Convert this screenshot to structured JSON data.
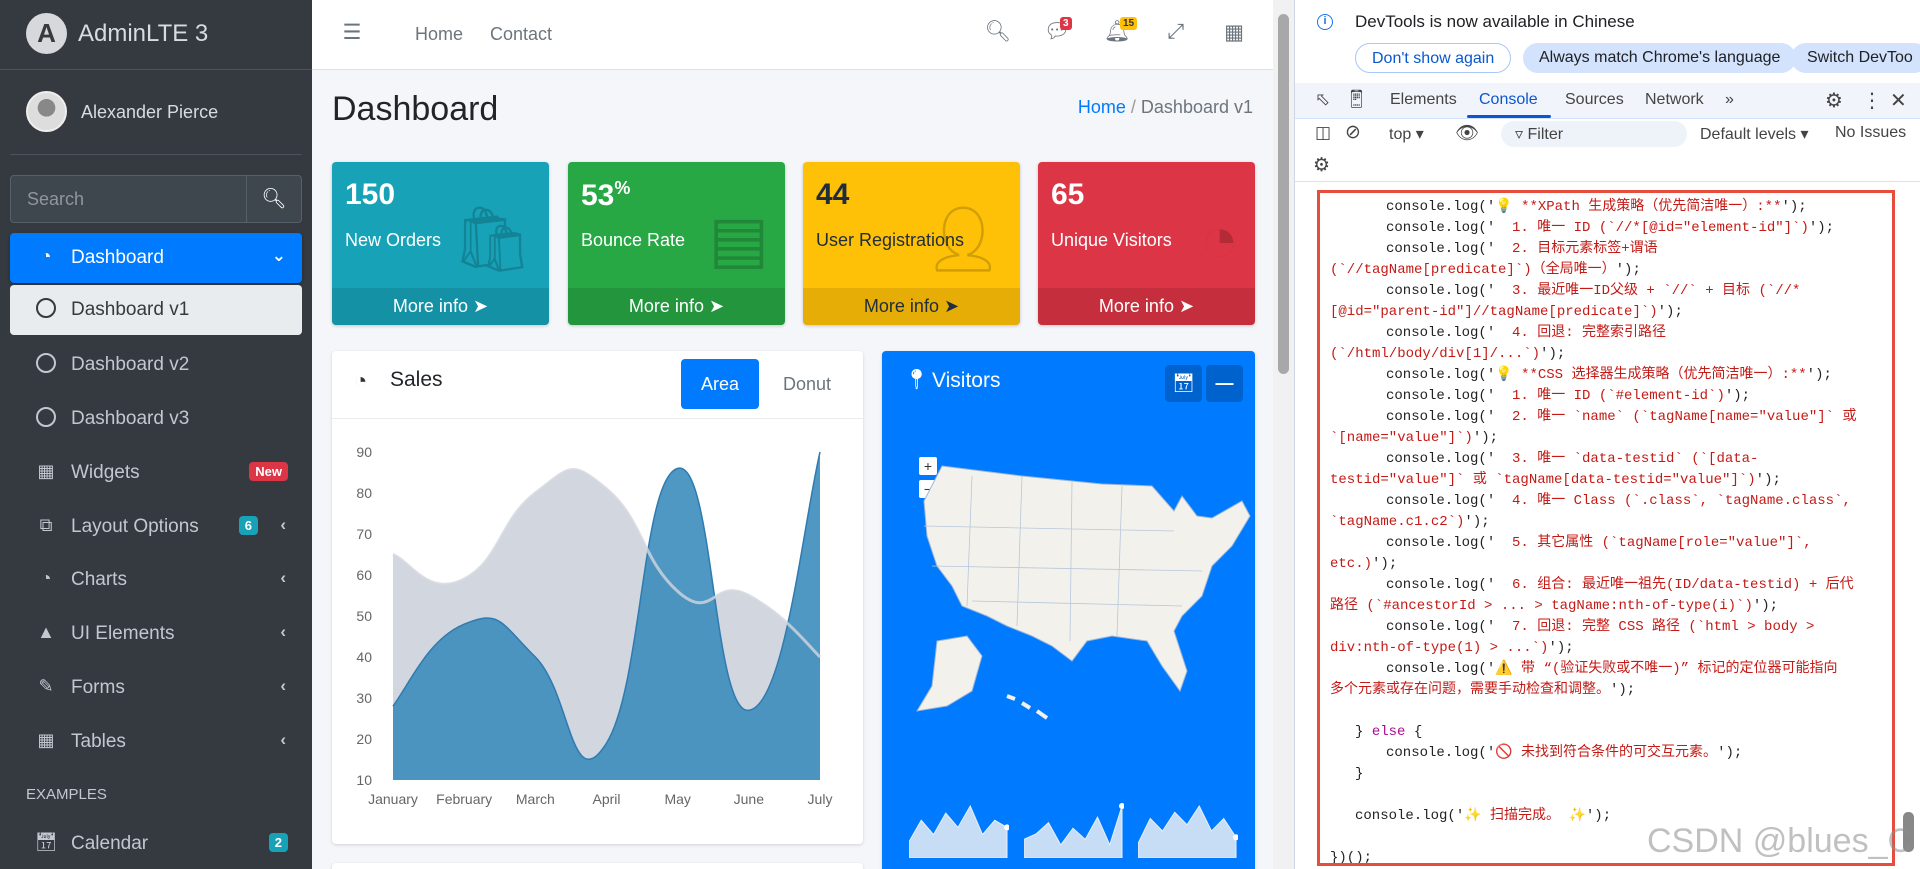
{
  "sidebar": {
    "brand": "AdminLTE 3",
    "brand_logo_letter": "A",
    "user_name": "Alexander Pierce",
    "search_placeholder": "Search",
    "items": [
      {
        "label": "Dashboard",
        "icon": "tachometer-icon",
        "state": "active",
        "right": "chevron-down"
      },
      {
        "label": "Dashboard v1",
        "icon": "circle-icon",
        "state": "selected"
      },
      {
        "label": "Dashboard v2",
        "icon": "circle-icon"
      },
      {
        "label": "Dashboard v3",
        "icon": "circle-icon"
      },
      {
        "label": "Widgets",
        "icon": "th-icon",
        "badge": "New",
        "badge_color": "#dc3545"
      },
      {
        "label": "Layout Options",
        "icon": "copy-icon",
        "badge": "6",
        "badge_color": "#17a2b8",
        "right": "chevron-left"
      },
      {
        "label": "Charts",
        "icon": "pie-chart-icon",
        "right": "chevron-left"
      },
      {
        "label": "UI Elements",
        "icon": "tree-icon",
        "right": "chevron-left"
      },
      {
        "label": "Forms",
        "icon": "edit-icon",
        "right": "chevron-left"
      },
      {
        "label": "Tables",
        "icon": "table-icon",
        "right": "chevron-left"
      }
    ],
    "header": "EXAMPLES",
    "calendar": {
      "label": "Calendar",
      "icon": "calendar-icon",
      "badge": "2",
      "badge_color": "#17a2b8"
    }
  },
  "navbar": {
    "links": [
      "Home",
      "Contact"
    ],
    "messages_badge": "3",
    "notifications_badge": "15"
  },
  "page": {
    "title": "Dashboard",
    "breadcrumb": [
      "Home",
      "Dashboard v1"
    ]
  },
  "small_boxes": [
    {
      "value": "150",
      "suffix": "",
      "label": "New Orders",
      "color": "#17a2b8",
      "icon": "shopping-bag-icon",
      "more": "More info"
    },
    {
      "value": "53",
      "suffix": "%",
      "label": "Bounce Rate",
      "color": "#28a745",
      "icon": "bar-chart-icon",
      "more": "More info"
    },
    {
      "value": "44",
      "suffix": "",
      "label": "User Registrations",
      "color": "#ffc107",
      "icon": "user-plus-icon",
      "more": "More info"
    },
    {
      "value": "65",
      "suffix": "",
      "label": "Unique Visitors",
      "color": "#dc3545",
      "icon": "pie-chart-icon",
      "more": "More info"
    }
  ],
  "sales": {
    "title": "Sales",
    "tabs": [
      "Area",
      "Donut"
    ],
    "active_tab": "Area"
  },
  "chart_data": {
    "type": "area",
    "categories": [
      "January",
      "February",
      "March",
      "April",
      "May",
      "June",
      "July"
    ],
    "yticks": [
      10,
      20,
      30,
      40,
      50,
      60,
      70,
      80,
      90
    ],
    "ylim": [
      10,
      90
    ],
    "series": [
      {
        "name": "gray",
        "color": "#d2d6de",
        "values": [
          65,
          59,
          80,
          81,
          56,
          55,
          40
        ]
      },
      {
        "name": "blue",
        "color": "#3c8dbc",
        "values": [
          28,
          48,
          40,
          19,
          86,
          27,
          90
        ]
      }
    ]
  },
  "visitors": {
    "title": "Visitors",
    "zoom_in": "+",
    "zoom_out": "−",
    "sparklines": [
      [
        2,
        5,
        3,
        6,
        4,
        7,
        3,
        5,
        4
      ],
      [
        3,
        4,
        6,
        2,
        5,
        3,
        7,
        2,
        9
      ],
      [
        2,
        6,
        4,
        7,
        5,
        8,
        4,
        6,
        3
      ]
    ]
  },
  "devtools": {
    "info": "DevTools is now available in Chinese",
    "buttons": [
      "Don't show again",
      "Always match Chrome's language",
      "Switch DevToo"
    ],
    "tabs": [
      "Elements",
      "Console",
      "Sources",
      "Network"
    ],
    "active_tab": "Console",
    "context": "top ▾",
    "filter": "Filter",
    "levels": "Default levels ▾",
    "issues": "No Issues",
    "code": [
      {
        "i": 2,
        "pre": "console.log('",
        "s": "💡 **XPath 生成策略（优先简洁唯一）:**",
        "post": "');"
      },
      {
        "i": 2,
        "pre": "console.log('",
        "s": "  1. 唯一 ID (`//*[@id=\"element-id\"]`)",
        "post": "');"
      },
      {
        "i": 2,
        "pre": "console.log('",
        "s": "  2. 目标元素标签+谓语",
        "post": ""
      },
      {
        "i": 0,
        "pre": "",
        "s": "(`//tagName[predicate]`)（全局唯一）",
        "post": "');"
      },
      {
        "i": 2,
        "pre": "console.log('",
        "s": "  3. 最近唯一ID父级 + `//` + 目标 (`//*",
        "post": ""
      },
      {
        "i": 0,
        "pre": "",
        "s": "[@id=\"parent-id\"]//tagName[predicate]`)",
        "post": "');"
      },
      {
        "i": 2,
        "pre": "console.log('",
        "s": "  4. 回退: 完整索引路径",
        "post": ""
      },
      {
        "i": 0,
        "pre": "",
        "s": "(`/html/body/div[1]/...`)",
        "post": "');"
      },
      {
        "i": 2,
        "pre": "console.log('",
        "s": "💡 **CSS 选择器生成策略（优先简洁唯一）:**",
        "post": "');"
      },
      {
        "i": 2,
        "pre": "console.log('",
        "s": "  1. 唯一 ID (`#element-id`)",
        "post": "');"
      },
      {
        "i": 2,
        "pre": "console.log('",
        "s": "  2. 唯一 `name` (`tagName[name=\"value\"]` 或",
        "post": ""
      },
      {
        "i": 0,
        "pre": "",
        "s": "`[name=\"value\"]`)",
        "post": "');"
      },
      {
        "i": 2,
        "pre": "console.log('",
        "s": "  3. 唯一 `data-testid` (`[data-",
        "post": ""
      },
      {
        "i": 0,
        "pre": "",
        "s": "testid=\"value\"]` 或 `tagName[data-testid=\"value\"]`)",
        "post": "');"
      },
      {
        "i": 2,
        "pre": "console.log('",
        "s": "  4. 唯一 Class (`.class`, `tagName.class`,",
        "post": ""
      },
      {
        "i": 0,
        "pre": "",
        "s": "`tagName.c1.c2`)",
        "post": "');"
      },
      {
        "i": 2,
        "pre": "console.log('",
        "s": "  5. 其它属性 (`tagName[role=\"value\"]`,",
        "post": ""
      },
      {
        "i": 0,
        "pre": "",
        "s": "etc.)",
        "post": "');"
      },
      {
        "i": 2,
        "pre": "console.log('",
        "s": "  6. 组合: 最近唯一祖先(ID/data-testid) + 后代",
        "post": ""
      },
      {
        "i": 0,
        "pre": "",
        "s": "路径 (`#ancestorId > ... > tagName:nth-of-type(i)`)",
        "post": "');"
      },
      {
        "i": 2,
        "pre": "console.log('",
        "s": "  7. 回退: 完整 CSS 路径 (`html > body >",
        "post": ""
      },
      {
        "i": 0,
        "pre": "",
        "s": "div:nth-of-type(1) > ...`)",
        "post": "');"
      },
      {
        "i": 2,
        "pre": "console.log('",
        "s": "⚠️ 带 “(验证失败或不唯一)” 标记的定位器可能指向",
        "post": ""
      },
      {
        "i": 0,
        "pre": "",
        "s": "多个元素或存在问题，需要手动检查和调整。",
        "post": "');"
      },
      {
        "i": 0,
        "pre": "",
        "s": "",
        "post": ""
      },
      {
        "i": 1,
        "pre": "} ",
        "k": "else",
        "post": " {"
      },
      {
        "i": 2,
        "pre": "console.log('",
        "s": "🚫 未找到符合条件的可交互元素。",
        "post": "');"
      },
      {
        "i": 1,
        "pre": "}",
        "s": "",
        "post": ""
      },
      {
        "i": 0,
        "pre": "",
        "s": "",
        "post": ""
      },
      {
        "i": 1,
        "pre": "console.log('",
        "s": "✨ 扫描完成。 ✨",
        "post": "');"
      },
      {
        "i": 0,
        "pre": "",
        "s": "",
        "post": ""
      },
      {
        "i": 0,
        "pre": "})();",
        "s": "",
        "post": ""
      }
    ]
  },
  "watermark": "CSDN @blues_C"
}
